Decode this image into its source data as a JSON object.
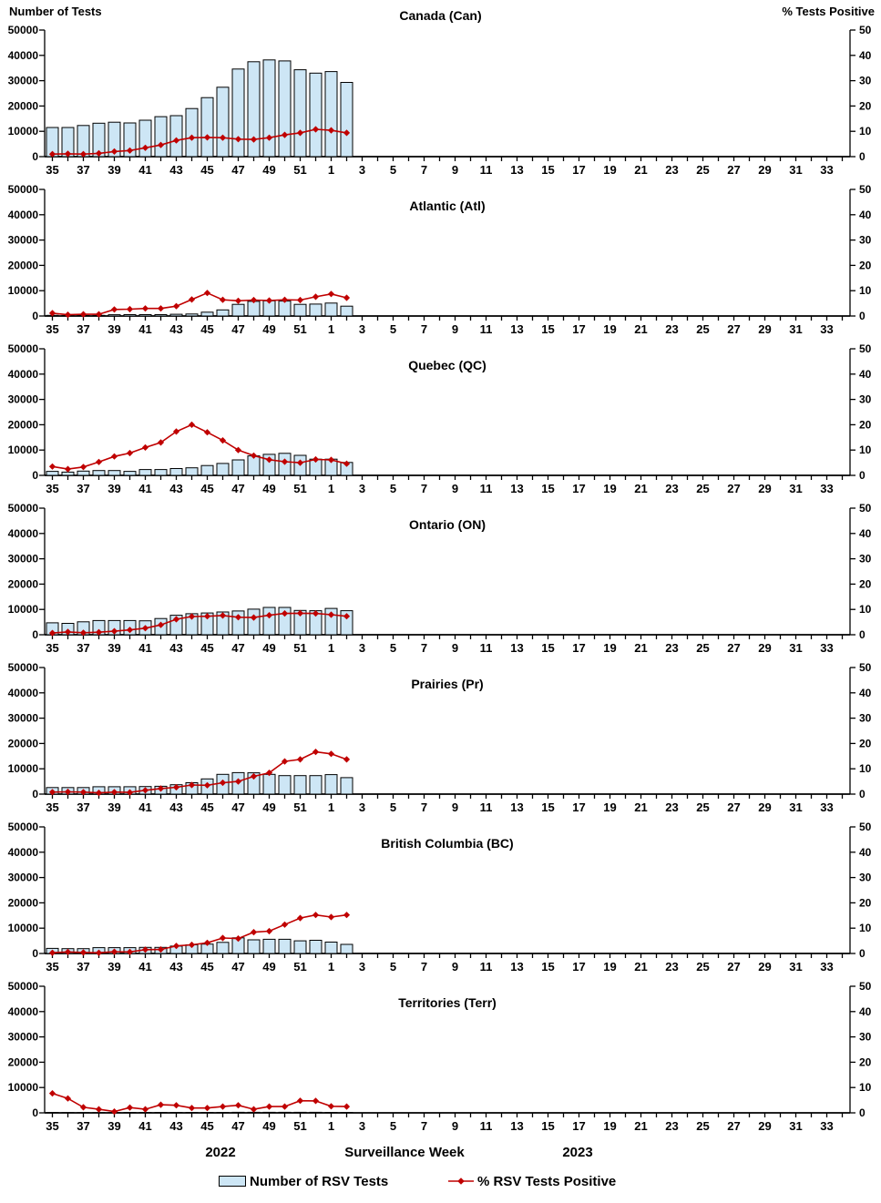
{
  "axes": {
    "left_title": "Number of Tests",
    "right_title": "% Tests Positive",
    "left_ticks": [
      "0",
      "10000",
      "20000",
      "30000",
      "40000",
      "50000"
    ],
    "right_ticks": [
      "0",
      "10",
      "20",
      "30",
      "40",
      "50"
    ],
    "x_tick_labels": [
      "35",
      "37",
      "39",
      "41",
      "43",
      "45",
      "47",
      "49",
      "51",
      "1",
      "3",
      "5",
      "7",
      "9",
      "11",
      "13",
      "15",
      "17",
      "19",
      "21",
      "23",
      "25",
      "27",
      "29",
      "31",
      "33"
    ],
    "weeks_shown_total": 52,
    "left_max": 50000,
    "right_max": 50
  },
  "footer": {
    "year_left": "2022",
    "x_axis_title": "Surveillance Week",
    "year_right": "2023"
  },
  "legend": {
    "bars_label": "Number of RSV Tests",
    "line_label": "% RSV Tests Positive"
  },
  "colors": {
    "bar_fill": "#CDE6F5",
    "bar_stroke": "#000000",
    "line": "#C00000",
    "text": "#000000"
  },
  "chart_data": [
    {
      "id": "canada",
      "type": "bar",
      "title": "Canada (Can)",
      "x_weeks": [
        "35",
        "36",
        "37",
        "38",
        "39",
        "40",
        "41",
        "42",
        "43",
        "44",
        "45",
        "46",
        "47",
        "48",
        "49",
        "50",
        "51",
        "52",
        "1",
        "2"
      ],
      "ylim_left": [
        0,
        50000
      ],
      "ylim_right": [
        0,
        50
      ],
      "series": [
        {
          "name": "Number of RSV Tests",
          "axis": "left",
          "values": [
            11500,
            11500,
            12300,
            13200,
            13600,
            13300,
            14400,
            15800,
            16200,
            19000,
            23300,
            27400,
            34600,
            37500,
            38200,
            37800,
            34300,
            33000,
            33600,
            29300
          ]
        },
        {
          "name": "% RSV Tests Positive",
          "axis": "right",
          "values": [
            1.0,
            1.1,
            1.0,
            1.3,
            2.0,
            2.4,
            3.5,
            4.6,
            6.4,
            7.5,
            7.6,
            7.5,
            6.9,
            6.8,
            7.5,
            8.6,
            9.4,
            10.8,
            10.4,
            9.4
          ]
        }
      ]
    },
    {
      "id": "atlantic",
      "type": "bar",
      "title": "Atlantic (Atl)",
      "x_weeks": [
        "35",
        "36",
        "37",
        "38",
        "39",
        "40",
        "41",
        "42",
        "43",
        "44",
        "45",
        "46",
        "47",
        "48",
        "49",
        "50",
        "51",
        "52",
        "1",
        "2"
      ],
      "ylim_left": [
        0,
        50000
      ],
      "ylim_right": [
        0,
        50
      ],
      "series": [
        {
          "name": "Number of RSV Tests",
          "axis": "left",
          "values": [
            250,
            200,
            200,
            250,
            500,
            550,
            550,
            550,
            700,
            800,
            1500,
            2400,
            4600,
            5800,
            6000,
            5900,
            4600,
            4700,
            5100,
            3900
          ]
        },
        {
          "name": "% RSV Tests Positive",
          "axis": "right",
          "values": [
            1.1,
            0.5,
            0.7,
            0.7,
            2.6,
            2.7,
            3.0,
            3.0,
            3.9,
            6.5,
            9.1,
            6.4,
            6.0,
            6.3,
            6.1,
            6.4,
            6.3,
            7.6,
            8.7,
            7.2
          ]
        }
      ]
    },
    {
      "id": "quebec",
      "type": "bar",
      "title": "Quebec (QC)",
      "x_weeks": [
        "35",
        "36",
        "37",
        "38",
        "39",
        "40",
        "41",
        "42",
        "43",
        "44",
        "45",
        "46",
        "47",
        "48",
        "49",
        "50",
        "51",
        "52",
        "1",
        "2"
      ],
      "ylim_left": [
        0,
        50000
      ],
      "ylim_right": [
        0,
        50
      ],
      "series": [
        {
          "name": "Number of RSV Tests",
          "axis": "left",
          "values": [
            1600,
            1300,
            1700,
            1900,
            1900,
            1600,
            2300,
            2300,
            2700,
            3000,
            3900,
            4700,
            6100,
            7700,
            8300,
            8700,
            7900,
            6400,
            6400,
            5100
          ]
        },
        {
          "name": "% RSV Tests Positive",
          "axis": "right",
          "values": [
            3.5,
            2.5,
            3.3,
            5.3,
            7.5,
            8.8,
            11.0,
            13.0,
            17.3,
            20.0,
            17.0,
            13.8,
            10.0,
            7.8,
            6.2,
            5.4,
            5.0,
            6.3,
            6.1,
            4.6
          ]
        }
      ]
    },
    {
      "id": "ontario",
      "type": "bar",
      "title": "Ontario (ON)",
      "x_weeks": [
        "35",
        "36",
        "37",
        "38",
        "39",
        "40",
        "41",
        "42",
        "43",
        "44",
        "45",
        "46",
        "47",
        "48",
        "49",
        "50",
        "51",
        "52",
        "1",
        "2"
      ],
      "ylim_left": [
        0,
        50000
      ],
      "ylim_right": [
        0,
        50
      ],
      "series": [
        {
          "name": "Number of RSV Tests",
          "axis": "left",
          "values": [
            4700,
            4500,
            5100,
            5600,
            5600,
            5600,
            5500,
            6400,
            7700,
            8300,
            8600,
            9000,
            9400,
            10100,
            10800,
            10800,
            9600,
            9500,
            10400,
            9500
          ]
        },
        {
          "name": "% RSV Tests Positive",
          "axis": "right",
          "values": [
            0.7,
            1.1,
            0.8,
            1.0,
            1.4,
            1.9,
            2.6,
            3.9,
            6.1,
            7.2,
            7.3,
            7.6,
            6.9,
            6.8,
            7.7,
            8.4,
            8.5,
            8.4,
            7.9,
            7.3
          ]
        }
      ]
    },
    {
      "id": "prairies",
      "type": "bar",
      "title": "Prairies (Pr)",
      "x_weeks": [
        "35",
        "36",
        "37",
        "38",
        "39",
        "40",
        "41",
        "42",
        "43",
        "44",
        "45",
        "46",
        "47",
        "48",
        "49",
        "50",
        "51",
        "52",
        "1",
        "2"
      ],
      "ylim_left": [
        0,
        50000
      ],
      "ylim_right": [
        0,
        50
      ],
      "series": [
        {
          "name": "Number of RSV Tests",
          "axis": "left",
          "values": [
            2600,
            2600,
            2600,
            2900,
            2900,
            2900,
            3000,
            3100,
            3700,
            4500,
            6000,
            7800,
            8500,
            8400,
            7800,
            7300,
            7300,
            7300,
            7700,
            6500
          ]
        },
        {
          "name": "% RSV Tests Positive",
          "axis": "right",
          "values": [
            0.8,
            0.9,
            0.8,
            0.5,
            0.8,
            0.7,
            1.5,
            2.2,
            2.7,
            3.6,
            3.5,
            4.5,
            5.0,
            7.0,
            8.4,
            12.9,
            13.7,
            16.7,
            15.9,
            13.7
          ]
        }
      ]
    },
    {
      "id": "british-columbia",
      "type": "bar",
      "title": "British Columbia (BC)",
      "x_weeks": [
        "35",
        "36",
        "37",
        "38",
        "39",
        "40",
        "41",
        "42",
        "43",
        "44",
        "45",
        "46",
        "47",
        "48",
        "49",
        "50",
        "51",
        "52",
        "1",
        "2"
      ],
      "ylim_left": [
        0,
        50000
      ],
      "ylim_right": [
        0,
        50
      ],
      "series": [
        {
          "name": "Number of RSV Tests",
          "axis": "left",
          "values": [
            2000,
            1900,
            1900,
            2300,
            2300,
            2300,
            2400,
            2400,
            2900,
            3400,
            3700,
            4400,
            6200,
            5400,
            5600,
            5600,
            5000,
            5200,
            4500,
            3600
          ]
        },
        {
          "name": "% RSV Tests Positive",
          "axis": "right",
          "values": [
            0.3,
            0.6,
            0.4,
            0.3,
            0.7,
            0.6,
            1.5,
            1.6,
            3.0,
            3.4,
            4.2,
            6.1,
            5.9,
            8.4,
            8.8,
            11.4,
            14.0,
            15.2,
            14.4,
            15.2
          ]
        }
      ]
    },
    {
      "id": "territories",
      "type": "bar",
      "title": "Territories (Terr)",
      "x_weeks": [
        "35",
        "36",
        "37",
        "38",
        "39",
        "40",
        "41",
        "42",
        "43",
        "44",
        "45",
        "46",
        "47",
        "48",
        "49",
        "50",
        "51",
        "52",
        "1",
        "2"
      ],
      "ylim_left": [
        0,
        50000
      ],
      "ylim_right": [
        0,
        50
      ],
      "series": [
        {
          "name": "Number of RSV Tests",
          "axis": "left",
          "values": [
            150,
            120,
            120,
            120,
            120,
            150,
            150,
            150,
            150,
            150,
            150,
            150,
            200,
            200,
            200,
            200,
            200,
            200,
            150,
            150
          ]
        },
        {
          "name": "% RSV Tests Positive",
          "axis": "right",
          "values": [
            7.7,
            5.7,
            2.2,
            1.4,
            0.5,
            2.1,
            1.4,
            3.2,
            3.0,
            1.9,
            1.9,
            2.5,
            3.0,
            1.4,
            2.5,
            2.5,
            4.8,
            4.7,
            2.6,
            2.5
          ]
        }
      ]
    }
  ]
}
